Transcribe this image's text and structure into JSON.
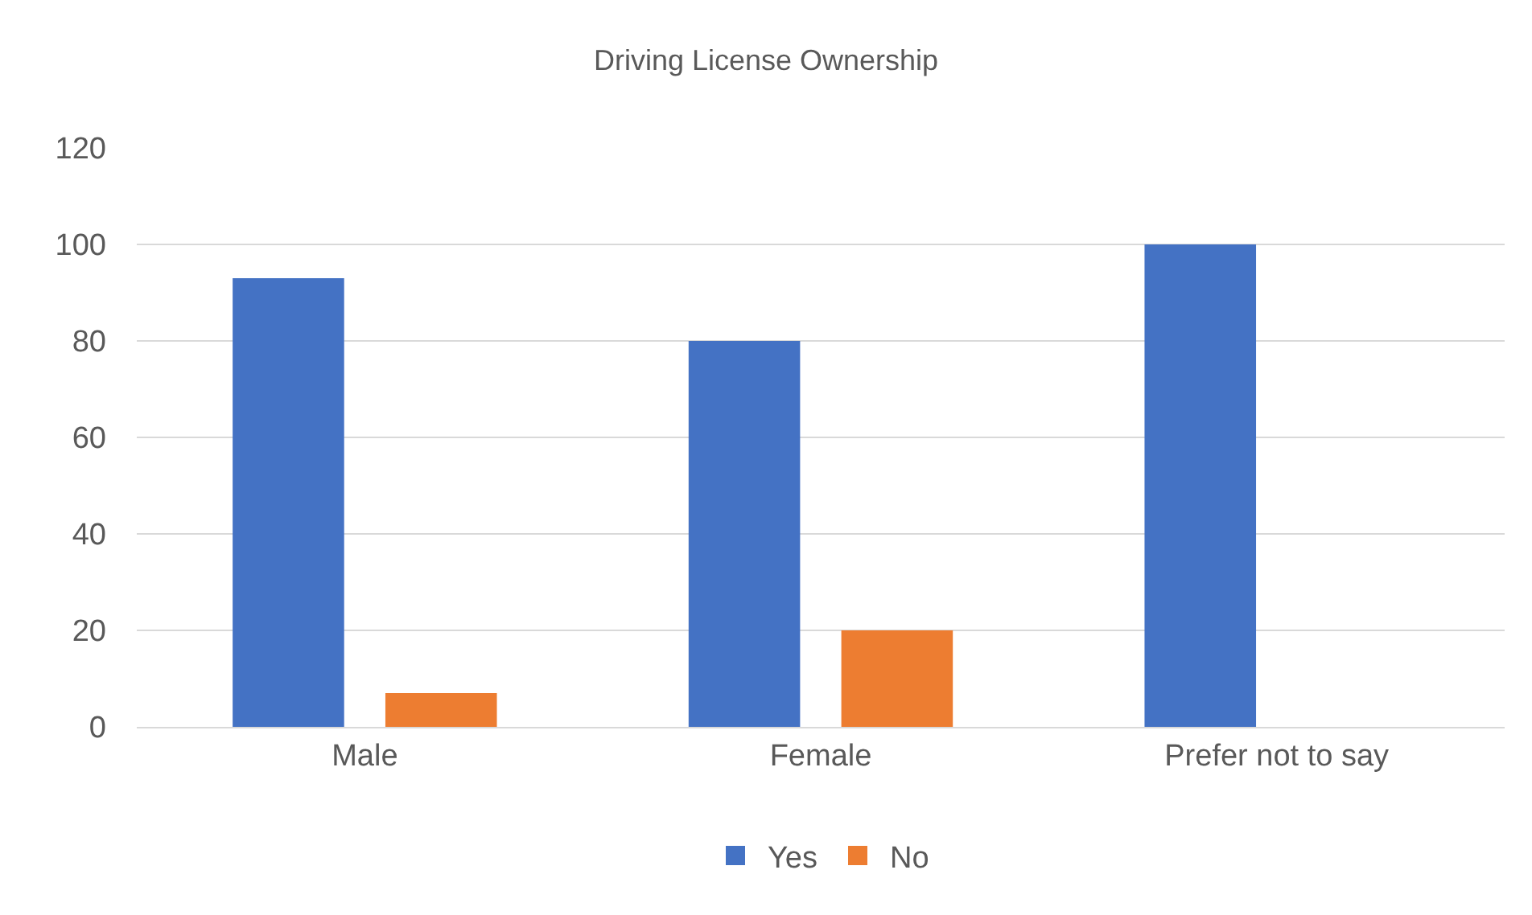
{
  "chart_data": {
    "type": "bar",
    "title": "Driving License Ownership",
    "categories": [
      "Male",
      "Female",
      "Prefer not to say"
    ],
    "series": [
      {
        "name": "Yes",
        "color": "#4472c4",
        "values": [
          93,
          80,
          100
        ]
      },
      {
        "name": "No",
        "color": "#ed7d31",
        "values": [
          7,
          20,
          0
        ]
      }
    ],
    "ylim": [
      0,
      120
    ],
    "yticks": [
      0,
      20,
      40,
      60,
      80,
      100,
      120
    ],
    "grid": "y",
    "legend": "bottom"
  }
}
